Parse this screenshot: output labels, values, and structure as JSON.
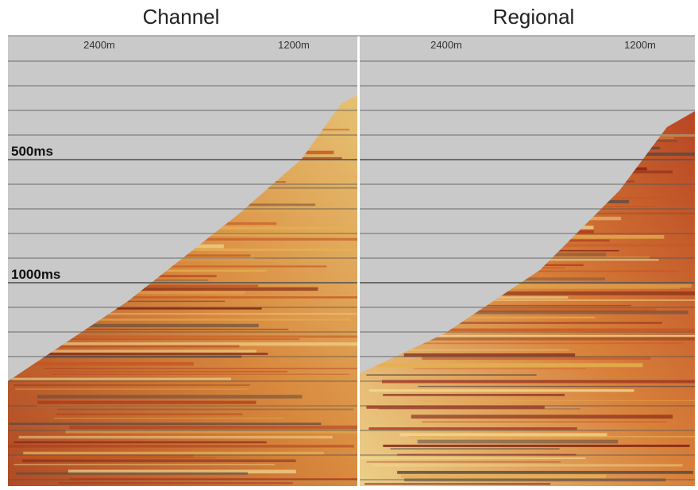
{
  "panels": [
    {
      "title": "Channel",
      "distance_labels": [
        "2400m",
        "1200m"
      ]
    },
    {
      "title": "Regional",
      "distance_labels": [
        "2400m",
        "1200m"
      ]
    }
  ],
  "time_labels": [
    "500ms",
    "1000ms"
  ]
}
